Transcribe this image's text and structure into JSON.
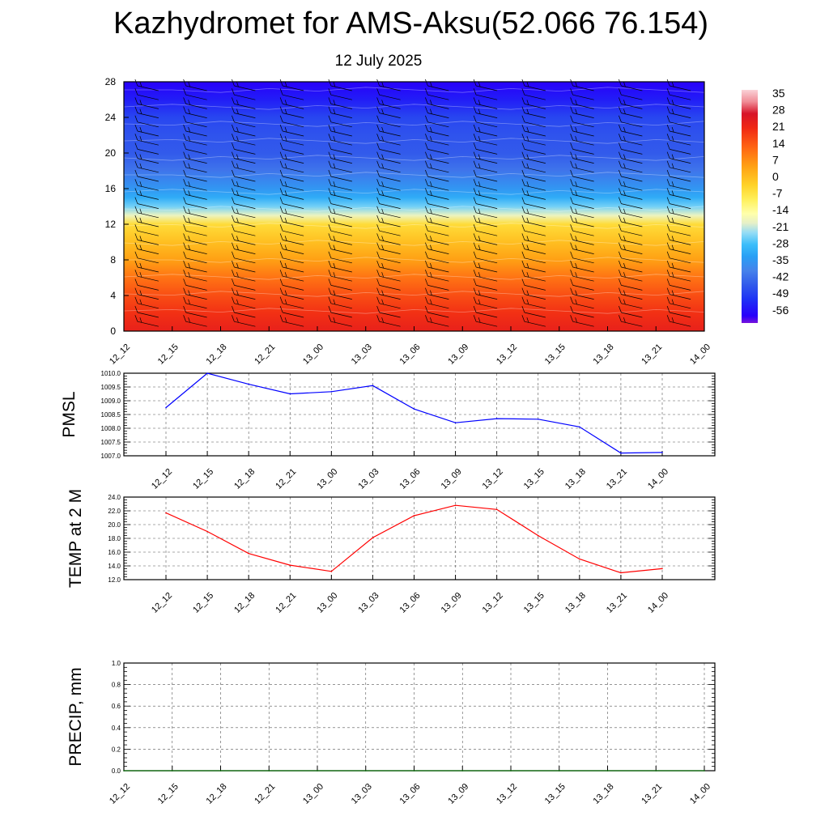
{
  "title": "Kazhydromet for AMS-Aksu(52.066 76.154)",
  "subtitle": "12 July 2025",
  "chart_data": [
    {
      "type": "heatmap",
      "name": "cross-section",
      "x_ticks": [
        "12_12",
        "12_15",
        "12_18",
        "12_21",
        "13_00",
        "13_03",
        "13_06",
        "13_09",
        "13_12",
        "13_15",
        "13_18",
        "13_21",
        "14_00"
      ],
      "y_ticks": [
        "0",
        "4",
        "8",
        "12",
        "16",
        "20",
        "24",
        "28"
      ],
      "ylim": [
        0,
        28
      ],
      "colorbar": {
        "labels": [
          "35",
          "28",
          "21",
          "14",
          "7",
          "0",
          "-7",
          "-14",
          "-21",
          "-28",
          "-35",
          "-42",
          "-49",
          "-56"
        ],
        "range": [
          -60,
          38
        ]
      },
      "profile": [
        {
          "level": 0,
          "value": 24
        },
        {
          "level": 2,
          "value": 21
        },
        {
          "level": 4,
          "value": 17
        },
        {
          "level": 6,
          "value": 12
        },
        {
          "level": 8,
          "value": 6
        },
        {
          "level": 10,
          "value": 1
        },
        {
          "level": 12,
          "value": -4
        },
        {
          "level": 13,
          "value": -17
        },
        {
          "level": 14,
          "value": -24
        },
        {
          "level": 15,
          "value": -30
        },
        {
          "level": 16,
          "value": -34
        },
        {
          "level": 18,
          "value": -40
        },
        {
          "level": 20,
          "value": -44
        },
        {
          "level": 22,
          "value": -45
        },
        {
          "level": 24,
          "value": -47
        },
        {
          "level": 26,
          "value": -53
        },
        {
          "level": 28,
          "value": -57
        }
      ],
      "wind_barbs": true
    },
    {
      "type": "line",
      "name": "pmsl",
      "ylabel": "PMSL",
      "x": [
        "12_12",
        "12_15",
        "12_18",
        "12_21",
        "13_00",
        "13_03",
        "13_06",
        "13_09",
        "13_12",
        "13_15",
        "13_18",
        "13_21",
        "14_00"
      ],
      "values": [
        1008.75,
        1010.0,
        1009.6,
        1009.25,
        1009.33,
        1009.55,
        1008.7,
        1008.2,
        1008.35,
        1008.33,
        1008.05,
        1007.1,
        1007.12
      ],
      "ylim": [
        1007.0,
        1010.0
      ],
      "y_ticks": [
        "1010.0",
        "1009.5",
        "1009.0",
        "1008.5",
        "1008.0",
        "1007.5",
        "1007.0"
      ],
      "color": "#0000ff",
      "grid": true
    },
    {
      "type": "line",
      "name": "temp2m",
      "ylabel": "TEMP at 2 M",
      "x": [
        "12_12",
        "12_15",
        "12_18",
        "12_21",
        "13_00",
        "13_03",
        "13_06",
        "13_09",
        "13_12",
        "13_15",
        "13_18",
        "13_21",
        "14_00"
      ],
      "values": [
        21.7,
        19.0,
        15.8,
        14.1,
        13.2,
        18.1,
        21.3,
        22.8,
        22.2,
        18.4,
        15.0,
        13.0,
        13.6
      ],
      "ylim": [
        12.0,
        24.0
      ],
      "y_ticks": [
        "24.0",
        "22.0",
        "20.0",
        "18.0",
        "16.0",
        "14.0",
        "12.0"
      ],
      "color": "#ff0000",
      "grid": true
    },
    {
      "type": "line",
      "name": "precip",
      "ylabel": "PRECIP, mm",
      "x": [
        "12_12",
        "12_15",
        "12_18",
        "12_21",
        "13_00",
        "13_03",
        "13_06",
        "13_09",
        "13_12",
        "13_15",
        "13_18",
        "13_21",
        "14_00"
      ],
      "values": [
        0,
        0,
        0,
        0,
        0,
        0,
        0,
        0,
        0,
        0,
        0,
        0,
        0
      ],
      "ylim": [
        0.0,
        1.0
      ],
      "y_ticks": [
        "1.0",
        "0.8",
        "0.6",
        "0.4",
        "0.2",
        "0.0"
      ],
      "color": "#006400",
      "grid": true
    }
  ]
}
